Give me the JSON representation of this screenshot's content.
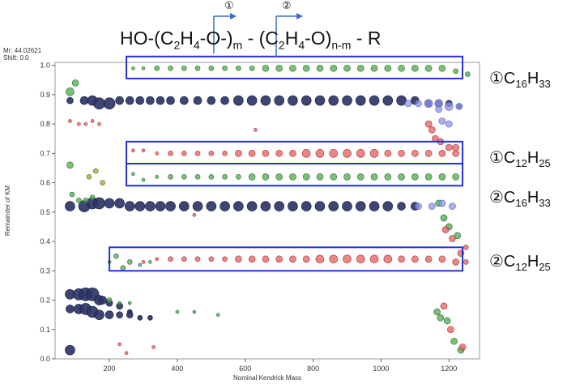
{
  "header": {
    "mr_label": "Mr: 44.02621",
    "shift_label": "Shift: 0.0",
    "formula": {
      "a": "HO-(C",
      "a_sub": "2",
      "b": "H",
      "b_sub": "4",
      "c": "-O-)",
      "c_sub": "m",
      "d": " - (C",
      "d_sub": "2",
      "e": "H",
      "e_sub": "4",
      "f": "-O)",
      "f_sub": "n-m",
      "g": " - R"
    },
    "marker_1": "①",
    "marker_2": "②"
  },
  "annotations": [
    {
      "prefix": "①C",
      "s1": "16",
      "mid": "H",
      "s2": "33"
    },
    {
      "prefix": "①C",
      "s1": "12",
      "mid": "H",
      "s2": "25"
    },
    {
      "prefix": "②C",
      "s1": "16",
      "mid": "H",
      "s2": "33"
    },
    {
      "prefix": "②C",
      "s1": "12",
      "mid": "H",
      "s2": "25"
    }
  ],
  "chart_data": {
    "type": "scatter",
    "xlabel": "Nominal Kendrick Mass",
    "ylabel": "Remainder of KM",
    "xlim": [
      40,
      1290
    ],
    "ylim": [
      0.0,
      1.01
    ],
    "xticks": [
      200,
      400,
      600,
      800,
      1000,
      1200
    ],
    "yticks": [
      0.0,
      0.1,
      0.2,
      0.3,
      0.4,
      0.5,
      0.6,
      0.7,
      0.8,
      0.9,
      1.0
    ],
    "grid": false,
    "colors": {
      "navy": "#2e3566",
      "green": "#4da84d",
      "red": "#e35d5d",
      "blue": "#8f94ea",
      "olive": "#a8a03a",
      "box": "#2633d6"
    },
    "highlight_boxes": [
      {
        "x": [
          250,
          1240
        ],
        "y": [
          0.955,
          1.03
        ]
      },
      {
        "x": [
          250,
          1240
        ],
        "y": [
          0.665,
          0.74
        ]
      },
      {
        "x": [
          250,
          1240
        ],
        "y": [
          0.59,
          0.665
        ]
      },
      {
        "x": [
          200,
          1240
        ],
        "y": [
          0.3,
          0.38
        ]
      }
    ],
    "series": [
      {
        "color": "navy",
        "x": [
          84,
          126,
          150,
          170,
          200,
          230,
          260,
          290,
          320,
          350,
          380,
          420,
          460,
          500,
          540,
          580,
          620,
          660,
          700,
          740,
          780,
          820,
          860,
          900,
          940,
          980,
          1020,
          1060,
          1100,
          1140,
          1170,
          1200,
          1230
        ],
        "y": [
          0.88,
          0.88,
          0.88,
          0.87,
          0.87,
          0.88,
          0.88,
          0.88,
          0.88,
          0.88,
          0.88,
          0.88,
          0.88,
          0.88,
          0.88,
          0.88,
          0.88,
          0.88,
          0.88,
          0.88,
          0.88,
          0.88,
          0.88,
          0.88,
          0.88,
          0.88,
          0.88,
          0.88,
          0.88,
          0.87,
          0.87,
          0.87,
          0.86
        ],
        "s": [
          4,
          5,
          6,
          7,
          7,
          5,
          5,
          5,
          5,
          5,
          5,
          5,
          5,
          5,
          5,
          6,
          6,
          6,
          6,
          6,
          6,
          6,
          6,
          6,
          6,
          6,
          6,
          6,
          5,
          4,
          4,
          4,
          3
        ]
      },
      {
        "color": "navy",
        "x": [
          84,
          126,
          150,
          170,
          200,
          230,
          260,
          290,
          320,
          350,
          380,
          420,
          460,
          500,
          540,
          580,
          620,
          660,
          700,
          740,
          780,
          820,
          860,
          900,
          940,
          980,
          1020,
          1060,
          1100
        ],
        "y": [
          0.52,
          0.52,
          0.53,
          0.53,
          0.53,
          0.53,
          0.52,
          0.52,
          0.52,
          0.52,
          0.52,
          0.52,
          0.52,
          0.52,
          0.52,
          0.52,
          0.52,
          0.52,
          0.52,
          0.52,
          0.52,
          0.52,
          0.52,
          0.52,
          0.52,
          0.52,
          0.52,
          0.52,
          0.52
        ],
        "s": [
          6,
          7,
          7,
          7,
          6,
          6,
          6,
          6,
          6,
          6,
          6,
          6,
          6,
          6,
          6,
          6,
          6,
          6,
          6,
          6,
          6,
          6,
          6,
          6,
          6,
          6,
          6,
          5,
          5
        ]
      },
      {
        "color": "navy",
        "x": [
          84,
          110,
          130,
          150,
          170,
          180,
          200,
          230,
          260
        ],
        "y": [
          0.22,
          0.22,
          0.22,
          0.22,
          0.2,
          0.2,
          0.19,
          0.18,
          0.16
        ],
        "s": [
          6,
          7,
          8,
          8,
          6,
          5,
          4,
          4,
          3
        ]
      },
      {
        "color": "navy",
        "x": [
          84,
          110,
          130,
          150,
          170,
          200,
          230,
          260,
          290,
          320
        ],
        "y": [
          0.17,
          0.17,
          0.17,
          0.16,
          0.15,
          0.15,
          0.15,
          0.15,
          0.14,
          0.14
        ],
        "s": [
          5,
          6,
          7,
          7,
          6,
          5,
          4,
          4,
          3,
          3
        ]
      },
      {
        "color": "navy",
        "x": [
          84
        ],
        "y": [
          0.03
        ],
        "s": [
          6
        ]
      },
      {
        "color": "green",
        "x": [
          84,
          100
        ],
        "y": [
          0.91,
          0.94
        ],
        "s": [
          5,
          4
        ]
      },
      {
        "color": "green",
        "x": [
          270,
          300,
          340,
          380,
          420,
          460,
          500,
          540,
          580,
          620,
          660,
          700,
          740,
          780,
          820,
          860,
          900,
          940,
          980,
          1020,
          1060,
          1100,
          1140,
          1180,
          1220,
          1255
        ],
        "y": [
          0.99,
          0.99,
          0.99,
          0.99,
          0.99,
          0.99,
          0.99,
          0.99,
          0.99,
          0.99,
          0.99,
          0.99,
          0.99,
          0.99,
          0.99,
          0.99,
          0.99,
          0.99,
          0.99,
          0.99,
          0.99,
          0.99,
          0.99,
          0.99,
          0.98,
          0.97
        ],
        "s": [
          2,
          2,
          3,
          3,
          3,
          3,
          3,
          3,
          3,
          3,
          4,
          4,
          4,
          4,
          4,
          4,
          4,
          4,
          4,
          4,
          4,
          4,
          4,
          4,
          3,
          3
        ]
      },
      {
        "color": "green",
        "x": [
          270,
          300,
          340,
          380,
          420,
          460,
          500,
          540,
          580,
          620,
          660,
          700,
          740,
          780,
          820,
          860,
          900,
          940,
          980,
          1020,
          1060,
          1100,
          1140,
          1180,
          1220
        ],
        "y": [
          0.63,
          0.61,
          0.62,
          0.62,
          0.62,
          0.62,
          0.62,
          0.62,
          0.62,
          0.62,
          0.62,
          0.62,
          0.62,
          0.62,
          0.62,
          0.62,
          0.62,
          0.62,
          0.62,
          0.62,
          0.62,
          0.62,
          0.62,
          0.62,
          0.62
        ],
        "s": [
          2,
          2,
          2,
          3,
          3,
          3,
          3,
          3,
          3,
          4,
          4,
          4,
          4,
          4,
          4,
          4,
          4,
          4,
          4,
          4,
          4,
          4,
          4,
          4,
          4
        ]
      },
      {
        "color": "green",
        "x": [
          200,
          220,
          240,
          260,
          290,
          320
        ],
        "y": [
          0.33,
          0.35,
          0.31,
          0.33,
          0.32,
          0.33
        ],
        "s": [
          2,
          3,
          3,
          3,
          2,
          2
        ]
      },
      {
        "color": "green",
        "x": [
          84,
          90,
          110,
          130,
          150,
          200,
          230,
          260
        ],
        "y": [
          0.66,
          0.56,
          0.54,
          0.54,
          0.55,
          0.2,
          0.19,
          0.19
        ],
        "s": [
          4,
          3,
          3,
          3,
          3,
          3,
          2,
          2
        ]
      },
      {
        "color": "green",
        "x": [
          400,
          450,
          520
        ],
        "y": [
          0.16,
          0.16,
          0.15
        ],
        "s": [
          2,
          2,
          2
        ]
      },
      {
        "color": "green",
        "x": [
          1165,
          1175,
          1195,
          1215,
          1235
        ],
        "y": [
          0.16,
          0.14,
          0.13,
          0.06,
          0.03
        ],
        "s": [
          4,
          4,
          4,
          4,
          4
        ]
      },
      {
        "color": "green",
        "x": [
          1170,
          1185,
          1200,
          1225
        ],
        "y": [
          0.53,
          0.48,
          0.45,
          0.42
        ],
        "s": [
          4,
          4,
          4,
          4
        ]
      },
      {
        "color": "red",
        "x": [
          270,
          300,
          340,
          380,
          420,
          460,
          500,
          540,
          580,
          620,
          660,
          700,
          740,
          780,
          820,
          860,
          900,
          940,
          980,
          1020,
          1060,
          1100,
          1140,
          1180,
          1220
        ],
        "y": [
          0.71,
          0.71,
          0.7,
          0.7,
          0.7,
          0.7,
          0.7,
          0.7,
          0.7,
          0.7,
          0.7,
          0.7,
          0.7,
          0.7,
          0.7,
          0.7,
          0.7,
          0.7,
          0.7,
          0.7,
          0.7,
          0.7,
          0.7,
          0.7,
          0.7
        ],
        "s": [
          2,
          2,
          2,
          3,
          3,
          3,
          3,
          3,
          4,
          4,
          4,
          4,
          4,
          5,
          5,
          5,
          5,
          5,
          5,
          4,
          4,
          4,
          4,
          4,
          4
        ]
      },
      {
        "color": "red",
        "x": [
          300,
          340,
          380,
          420,
          460,
          500,
          540,
          580,
          620,
          660,
          700,
          740,
          780,
          820,
          860,
          900,
          940,
          980,
          1020,
          1060,
          1100,
          1140,
          1180,
          1220,
          1250
        ],
        "y": [
          0.33,
          0.34,
          0.34,
          0.34,
          0.34,
          0.34,
          0.34,
          0.34,
          0.34,
          0.34,
          0.34,
          0.34,
          0.34,
          0.34,
          0.34,
          0.34,
          0.34,
          0.34,
          0.34,
          0.34,
          0.34,
          0.34,
          0.34,
          0.33,
          0.33
        ],
        "s": [
          2,
          2,
          3,
          3,
          3,
          3,
          3,
          4,
          4,
          4,
          4,
          4,
          4,
          5,
          5,
          5,
          5,
          5,
          5,
          4,
          4,
          4,
          4,
          4,
          3
        ]
      },
      {
        "color": "red",
        "x": [
          84,
          110,
          130,
          150,
          170
        ],
        "y": [
          0.81,
          0.8,
          0.8,
          0.81,
          0.8
        ],
        "s": [
          2,
          2,
          2,
          2,
          2
        ]
      },
      {
        "color": "red",
        "x": [
          1140,
          1150,
          1160,
          1175,
          1200,
          1220
        ],
        "y": [
          0.8,
          0.78,
          0.75,
          0.74,
          0.72,
          0.72
        ],
        "s": [
          4,
          4,
          4,
          4,
          4,
          4
        ]
      },
      {
        "color": "red",
        "x": [
          1190,
          1210,
          1235,
          1250
        ],
        "y": [
          0.44,
          0.41,
          0.36,
          0.38
        ],
        "s": [
          4,
          4,
          4,
          3
        ]
      },
      {
        "color": "red",
        "x": [
          1185,
          1205,
          1240
        ],
        "y": [
          0.18,
          0.1,
          0.04
        ],
        "s": [
          4,
          4,
          4
        ]
      },
      {
        "color": "red",
        "x": [
          230,
          250,
          330
        ],
        "y": [
          0.05,
          0.02,
          0.04
        ],
        "s": [
          2,
          2,
          2
        ]
      },
      {
        "color": "red",
        "x": [
          450,
          630
        ],
        "y": [
          0.49,
          0.78
        ],
        "s": [
          2,
          2
        ]
      },
      {
        "color": "blue",
        "x": [
          1080,
          1110,
          1140,
          1170,
          1200,
          1230
        ],
        "y": [
          0.87,
          0.87,
          0.87,
          0.87,
          0.86,
          0.86
        ],
        "s": [
          4,
          4,
          5,
          5,
          5,
          4
        ]
      },
      {
        "color": "blue",
        "x": [
          1110,
          1150,
          1180,
          1210
        ],
        "y": [
          0.52,
          0.52,
          0.53,
          0.52
        ],
        "s": [
          4,
          4,
          4,
          4
        ]
      },
      {
        "color": "blue",
        "x": [
          1170,
          1180,
          1200
        ],
        "y": [
          0.85,
          0.81,
          0.8
        ],
        "s": [
          4,
          4,
          4
        ]
      },
      {
        "color": "olive",
        "x": [
          140,
          160,
          180
        ],
        "y": [
          0.62,
          0.64,
          0.6
        ],
        "s": [
          3,
          3,
          3
        ]
      }
    ]
  }
}
